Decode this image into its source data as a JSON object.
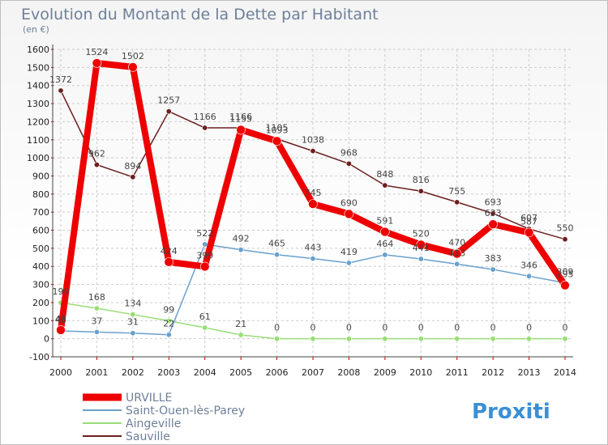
{
  "header": {
    "title": "Evolution du Montant de la Dette par Habitant",
    "subtitle": "(en €)"
  },
  "logo": {
    "text": "Proxiti"
  },
  "chart_data": {
    "type": "line",
    "x": [
      "2000",
      "2001",
      "2002",
      "2003",
      "2004",
      "2005",
      "2006",
      "2007",
      "2008",
      "2009",
      "2010",
      "2011",
      "2012",
      "2013",
      "2014"
    ],
    "yticks": [
      "-100",
      "0",
      "100",
      "200",
      "300",
      "400",
      "500",
      "600",
      "700",
      "800",
      "900",
      "1000",
      "1100",
      "1200",
      "1300",
      "1400",
      "1500",
      "1600"
    ],
    "ylim": [
      -100,
      1600
    ],
    "grid": true,
    "legend_position": "bottom-left",
    "series": [
      {
        "name": "Sauville",
        "color": "#6b1e1e",
        "width": 1.5,
        "values": [
          1372,
          962,
          894,
          1257,
          1166,
          1166,
          1105,
          1038,
          968,
          848,
          816,
          755,
          693,
          607,
          550
        ]
      },
      {
        "name": "Aingeville",
        "color": "#99dd77",
        "width": 1.5,
        "values": [
          199,
          168,
          134,
          99,
          61,
          21,
          0,
          0,
          0,
          0,
          0,
          0,
          0,
          0,
          0
        ]
      },
      {
        "name": "Saint-Ouen-lès-Parey",
        "color": "#6aa0cc",
        "width": 1.5,
        "values": [
          43,
          37,
          31,
          22,
          522,
          492,
          465,
          443,
          419,
          464,
          441,
          413,
          383,
          346,
          309
        ]
      },
      {
        "name": "URVILLE",
        "color": "#ee0000",
        "width": 8,
        "values": [
          48,
          1524,
          1502,
          424,
          399,
          1155,
          1093,
          745,
          690,
          591,
          520,
          470,
          633,
          587,
          295
        ]
      }
    ]
  }
}
